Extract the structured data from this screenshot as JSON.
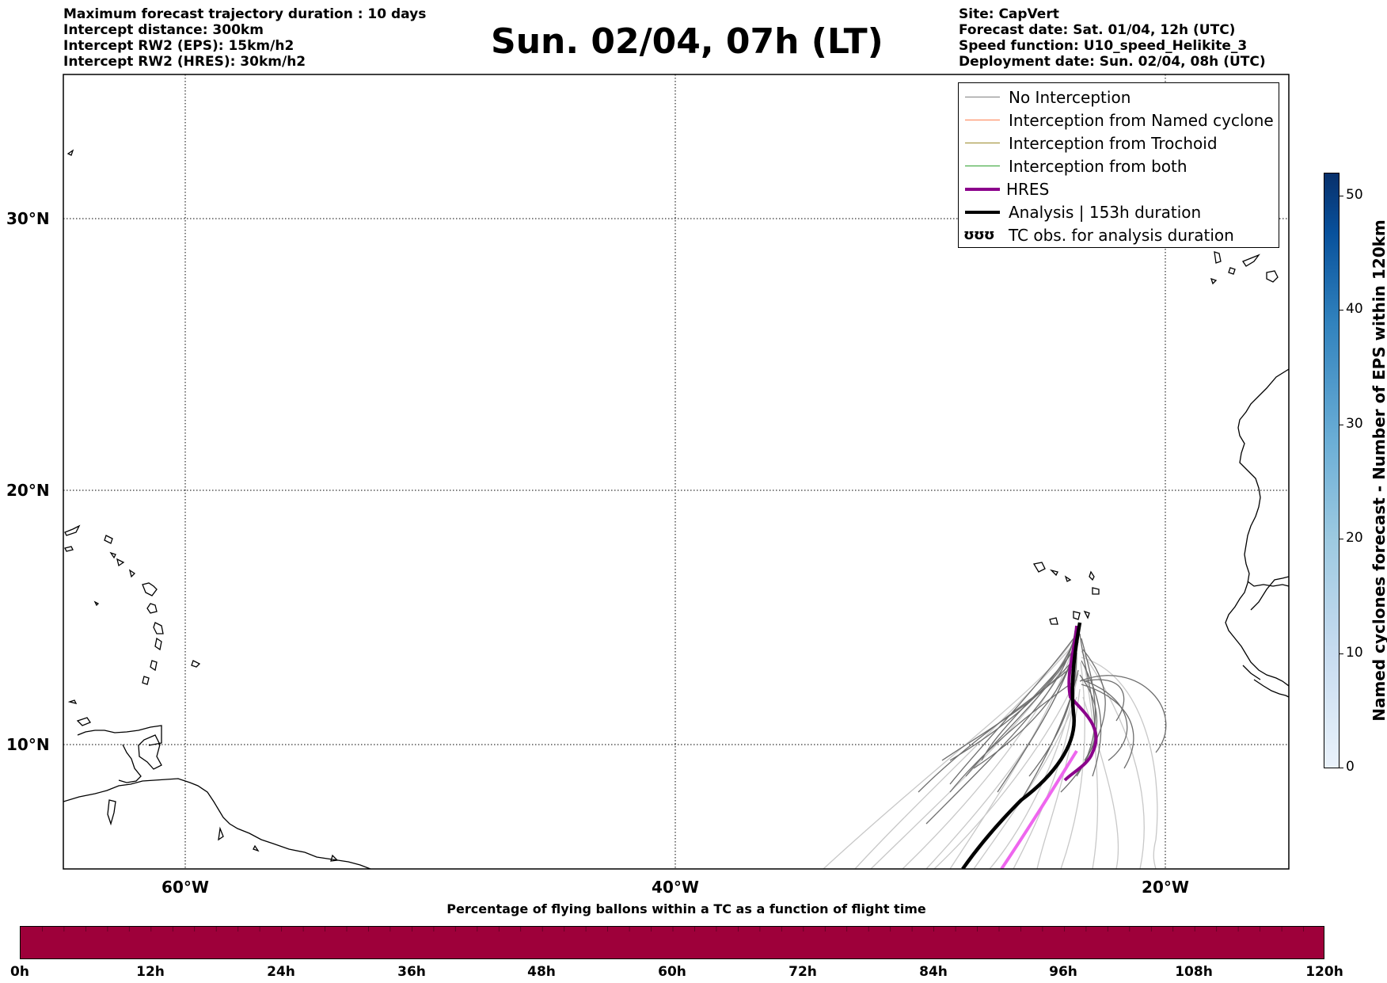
{
  "header_left": [
    "Maximum forecast trajectory duration : 10 days",
    "Intercept distance: 300km",
    "Intercept RW2 (EPS):  15km/h2",
    "Intercept RW2 (HRES): 30km/h2"
  ],
  "title": "Sun. 02/04, 07h (LT)",
  "header_right": [
    "Site: CapVert",
    "Forecast date: Sat. 01/04, 12h (UTC)",
    "Speed function: U10_speed_Helikite_3",
    "Deployment date: Sun. 02/04, 08h (UTC)"
  ],
  "map": {
    "lat_labels": [
      "30°N",
      "20°N",
      "10°N"
    ],
    "lon_labels": [
      "60°W",
      "40°W",
      "20°W"
    ],
    "gridlines": "dotted"
  },
  "legend": {
    "items": [
      {
        "label": "No Interception",
        "color": "#808080",
        "style": "thin"
      },
      {
        "label": "Interception from Named cyclone",
        "color": "#ff7f50",
        "style": "thin"
      },
      {
        "label": "Interception from Trochoid",
        "color": "#9a8a2a",
        "style": "thin"
      },
      {
        "label": "Interception from both",
        "color": "#2ca02c",
        "style": "thin"
      },
      {
        "label": "HRES",
        "color": "#8b008b",
        "style": "thick"
      },
      {
        "label": "Analysis | 153h duration",
        "color": "#000000",
        "style": "thick"
      },
      {
        "label": "TC obs. for analysis duration",
        "symbol": "ʊʊʊ",
        "style": "symbol"
      }
    ]
  },
  "vertical_colorbar": {
    "label": "Named cyclones forecast - Number of EPS within 120km",
    "ticks": [
      "0",
      "10",
      "20",
      "30",
      "40",
      "50"
    ],
    "min": 0,
    "max": 52
  },
  "horizontal_colorbar": {
    "title": "Percentage of flying ballons within a TC as a function of flight time",
    "ticks": [
      "0h",
      "12h",
      "24h",
      "36h",
      "48h",
      "60h",
      "72h",
      "84h",
      "96h",
      "108h",
      "120h"
    ],
    "color": "#9e003a"
  },
  "colors": {
    "trajectory_dark": "#5a5a5a",
    "trajectory_light": "#c8c8c8",
    "hres_dark": "#8b008b",
    "hres_light": "#ee66ee",
    "analysis": "#000000"
  }
}
